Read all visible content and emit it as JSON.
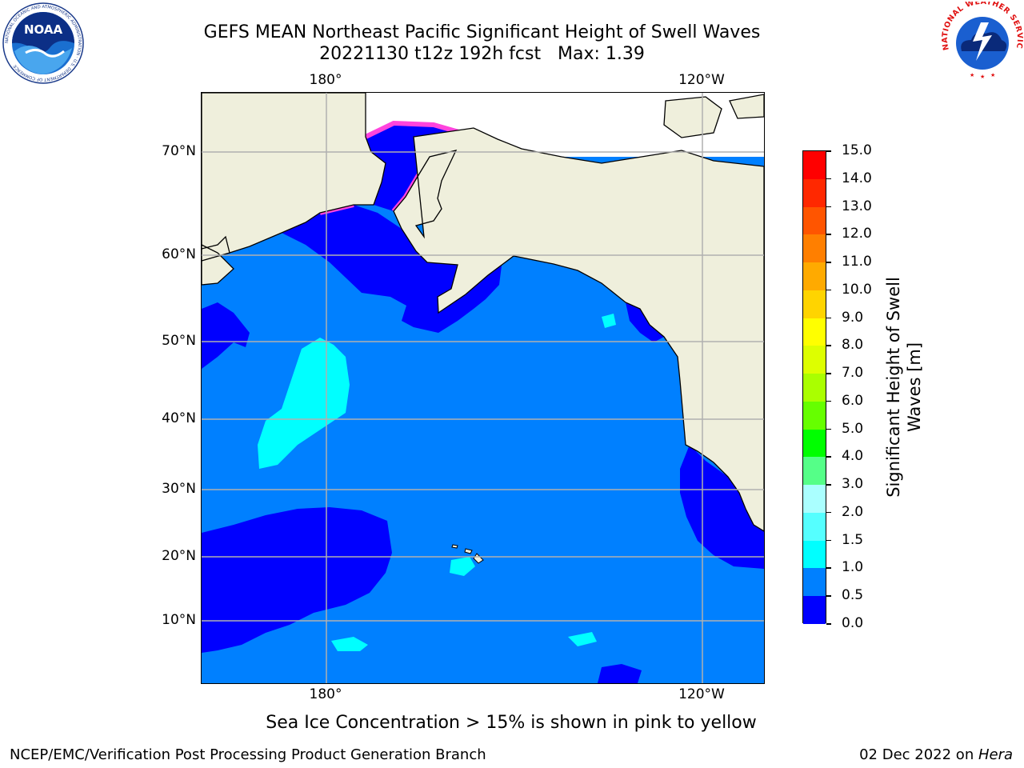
{
  "header": {
    "title_line1": "GEFS MEAN Northeast Pacific Significant Height of Swell Waves",
    "title_line2": "20221130 t12z 192h fcst   Max: 1.39"
  },
  "logos": {
    "noaa_text": "NOAA",
    "noaa_ring_text": "NATIONAL OCEANIC AND ATMOSPHERIC ADMINISTRATION · U.S. DEPARTMENT OF COMMERCE",
    "nws_ring_text": "NATIONAL WEATHER SERVICE"
  },
  "map": {
    "lon_labels_top": [
      "180°",
      "120°W"
    ],
    "lon_labels_bottom": [
      "180°",
      "120°W"
    ],
    "lat_labels": [
      "70°N",
      "60°N",
      "50°N",
      "40°N",
      "30°N",
      "20°N",
      "10°N"
    ],
    "colors": {
      "land": "#efefdc",
      "ocean_low": "#0000ff",
      "ocean_mid": "#0080ff",
      "ocean_high": "#00ffff",
      "grid": "#b0b0b0",
      "ice": "#ff44dd",
      "no_data": "#ffffff"
    }
  },
  "colorbar": {
    "title_line1": "Significant Height of Swell",
    "title_line2": "Waves [m]",
    "tick_labels": [
      "15.0",
      "14.0",
      "13.0",
      "12.0",
      "11.0",
      "10.0",
      "9.0",
      "8.0",
      "7.0",
      "6.0",
      "5.0",
      "4.0",
      "3.0",
      "2.0",
      "1.5",
      "1.0",
      "0.5",
      "0.0"
    ],
    "colors": [
      "#ff0000",
      "#ff2800",
      "#ff5500",
      "#ff7f00",
      "#ffaa00",
      "#ffd400",
      "#ffff00",
      "#ddff00",
      "#aaff00",
      "#66ff00",
      "#00ff00",
      "#55ff88",
      "#aaffff",
      "#55ffff",
      "#00ffff",
      "#0080ff",
      "#0000ff"
    ]
  },
  "footer": {
    "ice_note": "Sea Ice Concentration > 15% is shown in pink to yellow",
    "left": "NCEP/EMC/Verification Post Processing Product Generation Branch",
    "right_date": "02 Dec 2022 on ",
    "right_host": "Hera"
  }
}
